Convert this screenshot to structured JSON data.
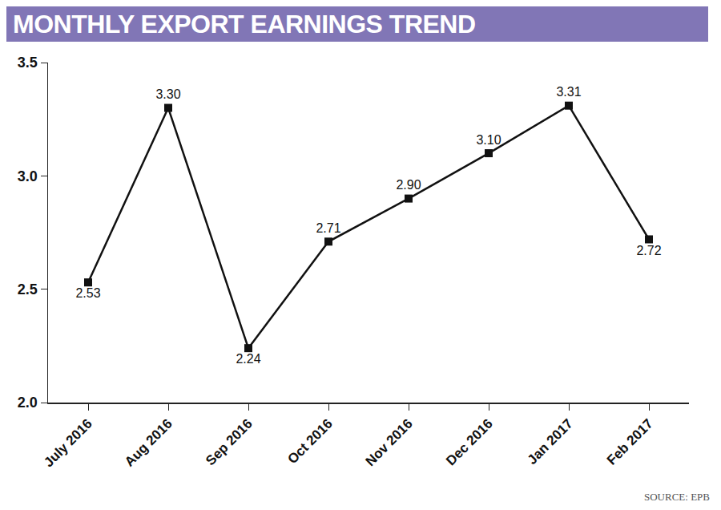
{
  "chart_data": {
    "type": "line",
    "title": "MONTHLY EXPORT EARNINGS TREND",
    "source": "SOURCE: EPB",
    "categories": [
      "July 2016",
      "Aug 2016",
      "Sep 2016",
      "Oct 2016",
      "Nov 2016",
      "Dec 2016",
      "Jan 2017",
      "Feb 2017"
    ],
    "values": [
      2.53,
      3.3,
      2.24,
      2.71,
      2.9,
      3.1,
      3.31,
      2.72
    ],
    "value_labels": [
      "2.53",
      "3.30",
      "2.24",
      "2.71",
      "2.90",
      "3.10",
      "3.31",
      "2.72"
    ],
    "color": "#111111",
    "marker": "square",
    "line_style": "solid",
    "ylim": [
      2.0,
      3.5
    ],
    "yticks": [
      {
        "value": 2.0,
        "label": "2.0"
      },
      2.5,
      {
        "value": 3.0,
        "label": "3.0"
      },
      3.5
    ],
    "grid": false,
    "data_labels": true
  }
}
